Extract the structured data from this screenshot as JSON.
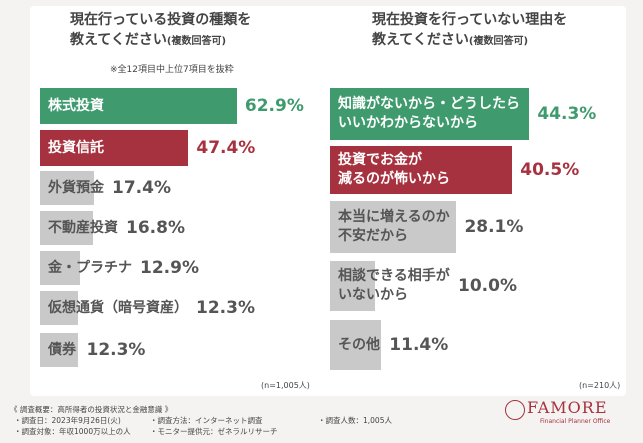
{
  "chart_data": [
    {
      "type": "bar",
      "orientation": "horizontal",
      "title": "現在行っている投資の種類を\n教えてください",
      "subtitle": "(複数回答可)",
      "note": "※全12項目中上位7項目を抜粋",
      "categories": [
        "株式投資",
        "投資信託",
        "外貨預金",
        "不動産投資",
        "金・プラチナ",
        "仮想通貨（暗号資産）",
        "債券"
      ],
      "values": [
        62.9,
        47.4,
        17.4,
        16.8,
        12.9,
        12.3,
        12.3
      ],
      "value_labels": [
        "62.9%",
        "47.4%",
        "17.4%",
        "16.8%",
        "12.9%",
        "12.3%",
        "12.3%"
      ],
      "colors": [
        "#3f9b6e",
        "#a7323f",
        "#c9c9c9",
        "#c9c9c9",
        "#c9c9c9",
        "#c9c9c9",
        "#c9c9c9"
      ],
      "text_colors": [
        "#ffffff",
        "#ffffff",
        "#555555",
        "#555555",
        "#555555",
        "#555555",
        "#555555"
      ],
      "value_colors": [
        "#3f9b6e",
        "#a7323f",
        "#555555",
        "#555555",
        "#555555",
        "#555555",
        "#555555"
      ],
      "sample_note": "(n=1,005人)"
    },
    {
      "type": "bar",
      "orientation": "horizontal",
      "title": "現在投資を行っていない理由を\n教えてください",
      "subtitle": "(複数回答可)",
      "categories": [
        "知識がないから・どうしたら\nいいかわからないから",
        "投資でお金が\n減るのが怖いから",
        "本当に増えるのか\n不安だから",
        "相談できる相手が\nいないから",
        "その他"
      ],
      "values": [
        44.3,
        40.5,
        28.1,
        10.0,
        11.4
      ],
      "value_labels": [
        "44.3%",
        "40.5%",
        "28.1%",
        "10.0%",
        "11.4%"
      ],
      "colors": [
        "#3f9b6e",
        "#a7323f",
        "#c9c9c9",
        "#c9c9c9",
        "#c9c9c9"
      ],
      "text_colors": [
        "#ffffff",
        "#ffffff",
        "#555555",
        "#555555",
        "#555555"
      ],
      "value_colors": [
        "#3f9b6e",
        "#a7323f",
        "#555555",
        "#555555",
        "#555555"
      ],
      "sample_note": "(n=210人)"
    }
  ],
  "footer": {
    "heading": "《 調査概要：高所得者の投資状況と金融意識 》",
    "items": [
      "・調査日：2023年9月26日(火)",
      "・調査方法：インターネット調査",
      "・調査人数：1,005人",
      "・調査対象：年収1000万以上の人",
      "・モニター提供元：ゼネラルリサーチ"
    ]
  },
  "logo": {
    "name": "FAMORE",
    "tagline": "Financial Planner Office"
  }
}
